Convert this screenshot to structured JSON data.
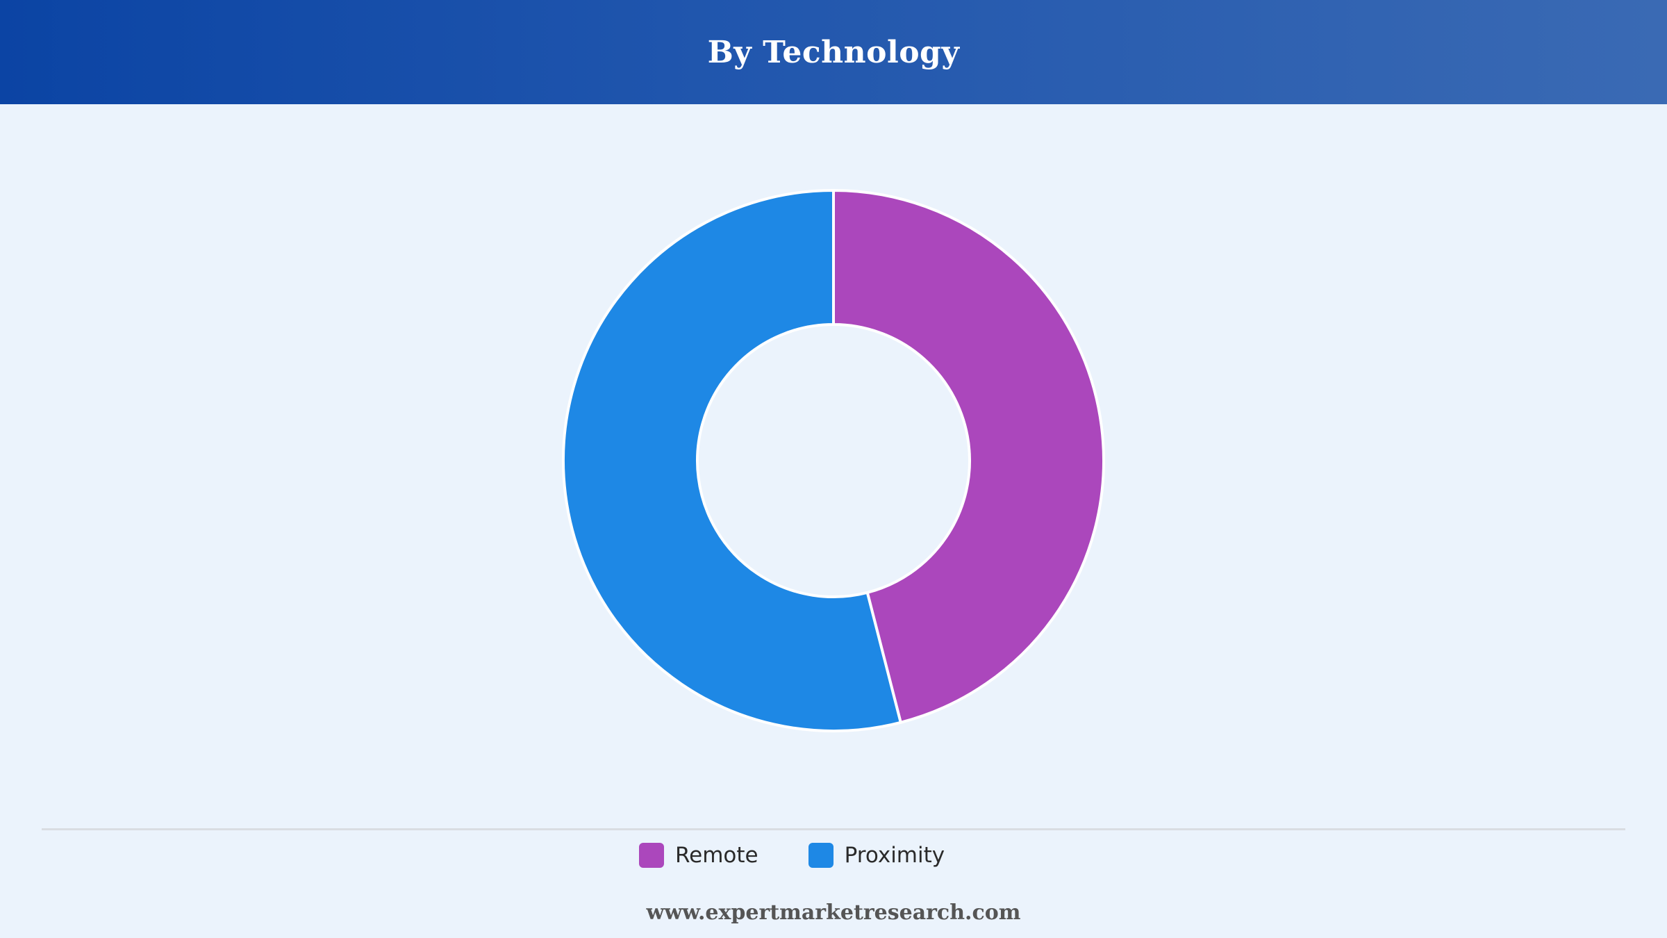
{
  "header": {
    "title": "By Technology"
  },
  "chart_data": {
    "type": "pie",
    "donut": true,
    "title": "By Technology",
    "series": [
      {
        "name": "Remote",
        "value": 46,
        "color": "#ab47bc"
      },
      {
        "name": "Proximity",
        "value": 54,
        "color": "#1e88e5"
      }
    ],
    "legend_position": "bottom"
  },
  "legend": {
    "items": [
      {
        "label": "Remote",
        "color": "#ab47bc"
      },
      {
        "label": "Proximity",
        "color": "#1e88e5"
      }
    ]
  },
  "footer": {
    "website": "www.expertmarketresearch.com"
  }
}
